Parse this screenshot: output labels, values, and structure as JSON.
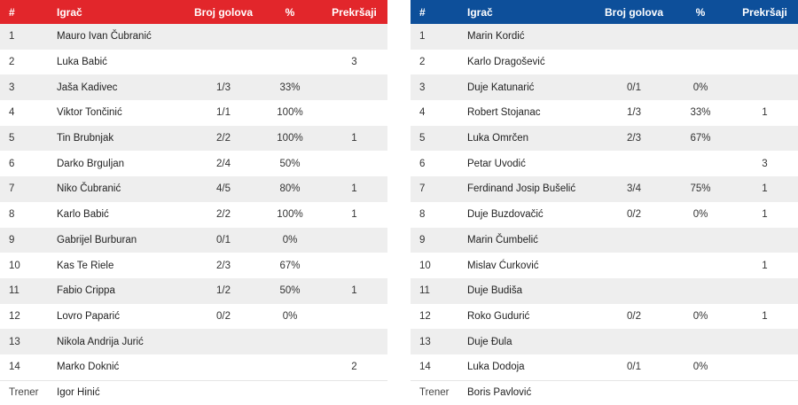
{
  "headers": {
    "num": "#",
    "player": "Igrač",
    "goals": "Broj golova",
    "pct": "%",
    "fouls": "Prekršaji"
  },
  "coach_label": "Trener",
  "left": {
    "accent": "#e2262b",
    "coach": "Igor Hinić",
    "rows": [
      {
        "num": "1",
        "name": "Mauro Ivan Čubranić",
        "goals": "",
        "pct": "",
        "fouls": ""
      },
      {
        "num": "2",
        "name": "Luka Babić",
        "goals": "",
        "pct": "",
        "fouls": "3"
      },
      {
        "num": "3",
        "name": "Jaša Kadivec",
        "goals": "1/3",
        "pct": "33%",
        "fouls": ""
      },
      {
        "num": "4",
        "name": "Viktor Tončinić",
        "goals": "1/1",
        "pct": "100%",
        "fouls": ""
      },
      {
        "num": "5",
        "name": "Tin Brubnjak",
        "goals": "2/2",
        "pct": "100%",
        "fouls": "1"
      },
      {
        "num": "6",
        "name": "Darko Brguljan",
        "goals": "2/4",
        "pct": "50%",
        "fouls": ""
      },
      {
        "num": "7",
        "name": "Niko Čubranić",
        "goals": "4/5",
        "pct": "80%",
        "fouls": "1"
      },
      {
        "num": "8",
        "name": "Karlo Babić",
        "goals": "2/2",
        "pct": "100%",
        "fouls": "1"
      },
      {
        "num": "9",
        "name": "Gabrijel Burburan",
        "goals": "0/1",
        "pct": "0%",
        "fouls": ""
      },
      {
        "num": "10",
        "name": "Kas Te Riele",
        "goals": "2/3",
        "pct": "67%",
        "fouls": ""
      },
      {
        "num": "11",
        "name": "Fabio Crippa",
        "goals": "1/2",
        "pct": "50%",
        "fouls": "1"
      },
      {
        "num": "12",
        "name": "Lovro Paparić",
        "goals": "0/2",
        "pct": "0%",
        "fouls": ""
      },
      {
        "num": "13",
        "name": "Nikola Andrija Jurić",
        "goals": "",
        "pct": "",
        "fouls": ""
      },
      {
        "num": "14",
        "name": "Marko Doknić",
        "goals": "",
        "pct": "",
        "fouls": "2"
      }
    ]
  },
  "right": {
    "accent": "#0d4f9a",
    "coach": "Boris Pavlović",
    "rows": [
      {
        "num": "1",
        "name": "Marin Kordić",
        "goals": "",
        "pct": "",
        "fouls": ""
      },
      {
        "num": "2",
        "name": "Karlo Dragošević",
        "goals": "",
        "pct": "",
        "fouls": ""
      },
      {
        "num": "3",
        "name": "Duje Katunarić",
        "goals": "0/1",
        "pct": "0%",
        "fouls": ""
      },
      {
        "num": "4",
        "name": "Robert Stojanac",
        "goals": "1/3",
        "pct": "33%",
        "fouls": "1"
      },
      {
        "num": "5",
        "name": "Luka Omrčen",
        "goals": "2/3",
        "pct": "67%",
        "fouls": ""
      },
      {
        "num": "6",
        "name": "Petar Uvodić",
        "goals": "",
        "pct": "",
        "fouls": "3"
      },
      {
        "num": "7",
        "name": "Ferdinand Josip Bušelić",
        "goals": "3/4",
        "pct": "75%",
        "fouls": "1"
      },
      {
        "num": "8",
        "name": "Duje Buzdovačić",
        "goals": "0/2",
        "pct": "0%",
        "fouls": "1"
      },
      {
        "num": "9",
        "name": "Marin Čumbelić",
        "goals": "",
        "pct": "",
        "fouls": ""
      },
      {
        "num": "10",
        "name": "Mislav Ćurković",
        "goals": "",
        "pct": "",
        "fouls": "1"
      },
      {
        "num": "11",
        "name": "Duje Budiša",
        "goals": "",
        "pct": "",
        "fouls": ""
      },
      {
        "num": "12",
        "name": "Roko Gudurić",
        "goals": "0/2",
        "pct": "0%",
        "fouls": "1"
      },
      {
        "num": "13",
        "name": "Duje Đula",
        "goals": "",
        "pct": "",
        "fouls": ""
      },
      {
        "num": "14",
        "name": "Luka Dodoja",
        "goals": "0/1",
        "pct": "0%",
        "fouls": ""
      }
    ]
  }
}
